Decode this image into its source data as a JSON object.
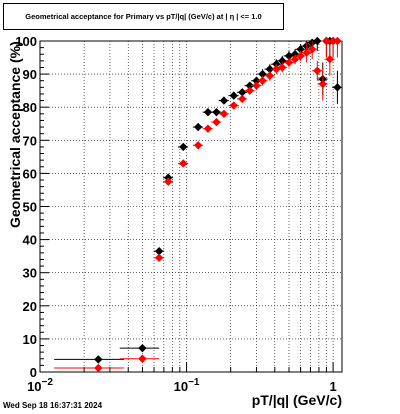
{
  "title": "Geometrical acceptance for Primary vs pT/|q| (GeV/c) at |  η | <= 1.0",
  "timestamp": "Wed Sep 18 16:37:31 2024",
  "chart_data": {
    "type": "scatter",
    "title": "Geometrical acceptance for Primary vs pT/|q| (GeV/c) at |  η | <= 1.0",
    "xlabel": "pT/|q| (GeV/c)",
    "ylabel": "Geometrical acceptance (%)",
    "xscale": "log",
    "xlim": [
      0.01,
      1.15
    ],
    "ylim": [
      0,
      100
    ],
    "grid": true,
    "y_ticks": [
      "0",
      "10",
      "20",
      "30",
      "40",
      "50",
      "60",
      "70",
      "80",
      "90",
      "100"
    ],
    "x_ticks": [
      {
        "mantissa": "10",
        "exponent": "−2",
        "value": 0.01
      },
      {
        "mantissa": "10",
        "exponent": "−1",
        "value": 0.1
      },
      {
        "mantissa": "1",
        "exponent": "",
        "value": 1
      }
    ],
    "series": [
      {
        "color": "#000000",
        "marker": "diamond",
        "x": [
          0.025,
          0.05,
          0.065,
          0.075,
          0.095,
          0.12,
          0.14,
          0.16,
          0.18,
          0.21,
          0.24,
          0.27,
          0.3,
          0.33,
          0.37,
          0.41,
          0.45,
          0.5,
          0.55,
          0.6,
          0.66,
          0.72,
          0.78,
          0.85,
          0.9,
          0.95,
          1.0,
          1.07
        ],
        "y": [
          3.8,
          7.2,
          36.5,
          58.7,
          68.0,
          74.0,
          78.5,
          78.5,
          82.0,
          83.5,
          84.5,
          86.5,
          88.0,
          90.0,
          91.5,
          93.0,
          94.0,
          95.5,
          96.0,
          97.5,
          98.5,
          99.5,
          100,
          88.5,
          100,
          100,
          100,
          86.0
        ]
      },
      {
        "color": "#ff0000",
        "marker": "diamond",
        "x": [
          0.025,
          0.05,
          0.065,
          0.075,
          0.095,
          0.12,
          0.14,
          0.16,
          0.18,
          0.21,
          0.24,
          0.27,
          0.3,
          0.33,
          0.37,
          0.41,
          0.45,
          0.5,
          0.55,
          0.6,
          0.66,
          0.72,
          0.78,
          0.85,
          0.9,
          0.95,
          1.0,
          1.07
        ],
        "y": [
          1.2,
          4.0,
          34.5,
          57.5,
          63.0,
          68.5,
          73.5,
          75.5,
          78.0,
          80.5,
          82.5,
          85.0,
          86.5,
          88.0,
          89.5,
          91.5,
          92.0,
          93.5,
          94.5,
          95.5,
          96.5,
          97.5,
          91.0,
          87.0,
          100,
          94.5,
          100,
          100
        ]
      }
    ]
  }
}
